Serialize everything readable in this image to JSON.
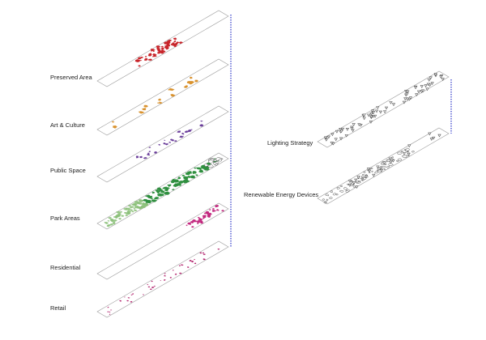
{
  "labels": {
    "preserved": "Preserved Area",
    "art": "Art & Culture",
    "public": "Public Space",
    "park": "Park Areas",
    "residential": "Residential",
    "retail": "Retail",
    "lighting": "Lighting Strategy",
    "renewable": "Renewable Energy Devices"
  },
  "colors": {
    "preserved": "#c8252b",
    "art": "#d9922e",
    "public": "#6a3d9a",
    "park_dark": "#2f8f3f",
    "park_light": "#8cc07a",
    "residential": "#c2287f",
    "retail": "#b01f6a",
    "outline": "#9a9a9a",
    "connector": "#2b35c9",
    "mono": "#555555"
  }
}
